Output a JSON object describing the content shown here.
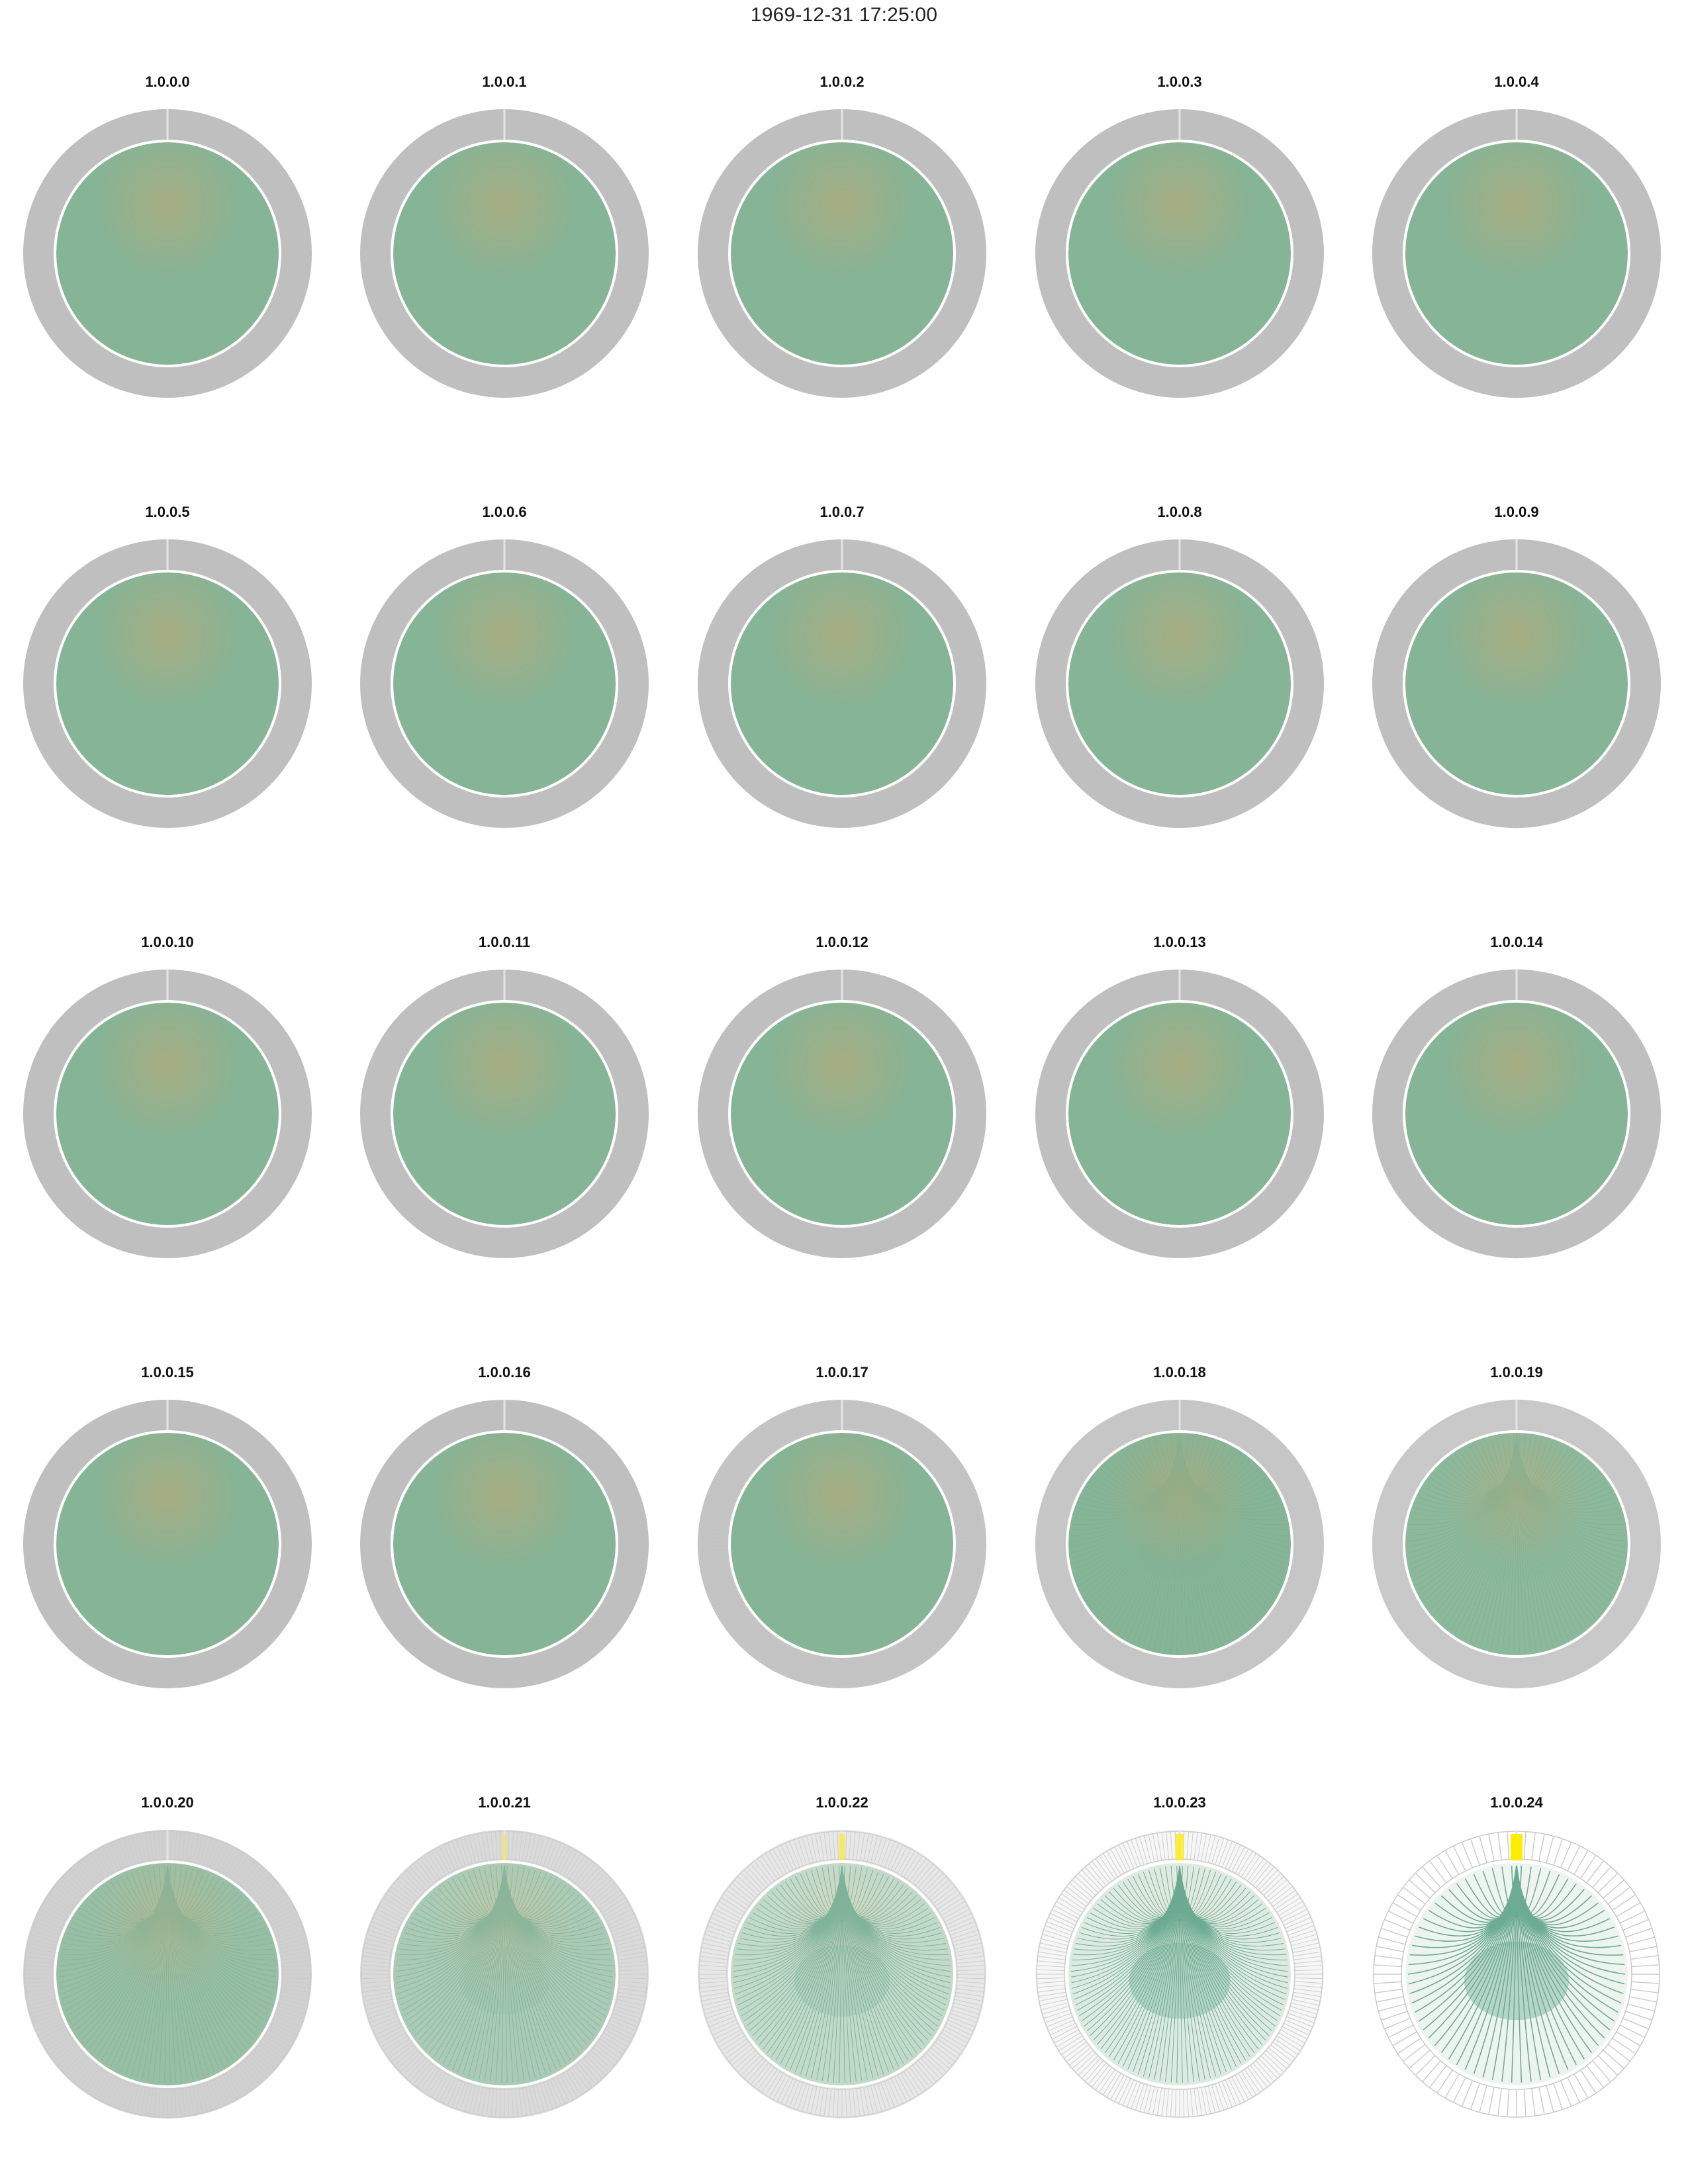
{
  "page": {
    "title": "1969-12-31 17:25:00"
  },
  "colors": {
    "ring": "#bfbfbf",
    "ring_line": "#c8c8c8",
    "disk_fill": "#86b496",
    "center_glow": "#a7ad82",
    "edge_line": "#5fa58a",
    "highlight": "#ffee00",
    "separator": "#ffffff"
  },
  "chart_data": {
    "type": "chord",
    "layout": {
      "rows": 5,
      "columns": 5
    },
    "panels": [
      {
        "label": "1.0.0.0",
        "ring_density": 1.0,
        "highlight": 0.0
      },
      {
        "label": "1.0.0.1",
        "ring_density": 1.0,
        "highlight": 0.0
      },
      {
        "label": "1.0.0.2",
        "ring_density": 1.0,
        "highlight": 0.0
      },
      {
        "label": "1.0.0.3",
        "ring_density": 1.0,
        "highlight": 0.0
      },
      {
        "label": "1.0.0.4",
        "ring_density": 1.0,
        "highlight": 0.0
      },
      {
        "label": "1.0.0.5",
        "ring_density": 1.0,
        "highlight": 0.0
      },
      {
        "label": "1.0.0.6",
        "ring_density": 1.0,
        "highlight": 0.0
      },
      {
        "label": "1.0.0.7",
        "ring_density": 1.0,
        "highlight": 0.0
      },
      {
        "label": "1.0.0.8",
        "ring_density": 1.0,
        "highlight": 0.0
      },
      {
        "label": "1.0.0.9",
        "ring_density": 1.0,
        "highlight": 0.0
      },
      {
        "label": "1.0.0.10",
        "ring_density": 1.0,
        "highlight": 0.0
      },
      {
        "label": "1.0.0.11",
        "ring_density": 1.0,
        "highlight": 0.0
      },
      {
        "label": "1.0.0.12",
        "ring_density": 1.0,
        "highlight": 0.0
      },
      {
        "label": "1.0.0.13",
        "ring_density": 1.0,
        "highlight": 0.0
      },
      {
        "label": "1.0.0.14",
        "ring_density": 1.0,
        "highlight": 0.0
      },
      {
        "label": "1.0.0.15",
        "ring_density": 1.0,
        "highlight": 0.0
      },
      {
        "label": "1.0.0.16",
        "ring_density": 1.0,
        "highlight": 0.0
      },
      {
        "label": "1.0.0.17",
        "ring_density": 0.95,
        "highlight": 0.0
      },
      {
        "label": "1.0.0.18",
        "ring_density": 0.9,
        "highlight": 0.0
      },
      {
        "label": "1.0.0.19",
        "ring_density": 0.85,
        "highlight": 0.0
      },
      {
        "label": "1.0.0.20",
        "ring_density": 0.75,
        "highlight": 0.0
      },
      {
        "label": "1.0.0.21",
        "ring_density": 0.6,
        "highlight": 0.1
      },
      {
        "label": "1.0.0.22",
        "ring_density": 0.4,
        "highlight": 0.3
      },
      {
        "label": "1.0.0.23",
        "ring_density": 0.18,
        "highlight": 0.6
      },
      {
        "label": "1.0.0.24",
        "ring_density": 0.05,
        "highlight": 1.0
      }
    ]
  }
}
